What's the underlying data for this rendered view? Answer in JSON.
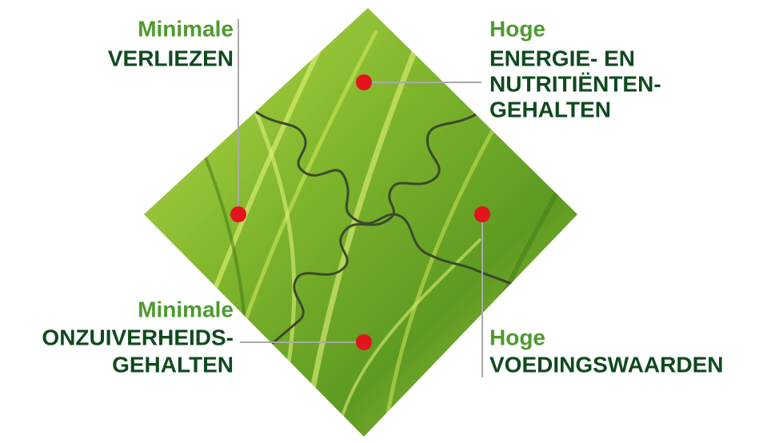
{
  "labels": [
    {
      "qualifier": "Minimale",
      "lines": [
        "VERLIEZEN"
      ]
    },
    {
      "qualifier": "Hoge",
      "lines": [
        "ENERGIE- EN",
        "NUTRITIËNTEN-",
        "GEHALTEN"
      ]
    },
    {
      "qualifier": "Minimale",
      "lines": [
        "ONZUIVERHEIDS-",
        "GEHALTEN"
      ]
    },
    {
      "qualifier": "Hoge",
      "lines": [
        "VOEDINGSWAARDEN"
      ]
    }
  ]
}
